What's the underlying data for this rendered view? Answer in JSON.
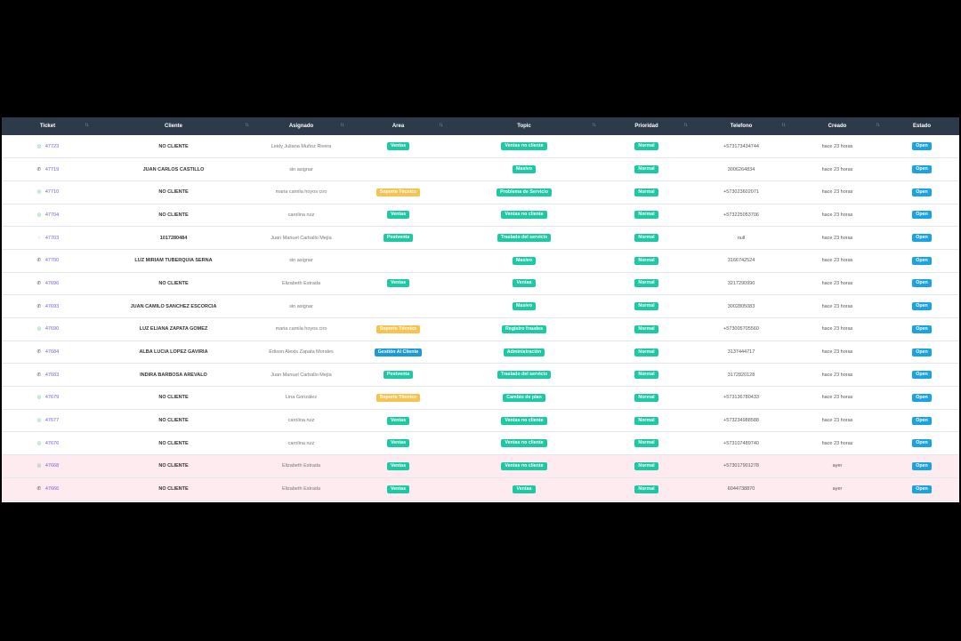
{
  "colors": {
    "header_bg": "#2d3a4a",
    "badge_green": "#1dc9a2",
    "badge_yellow": "#f7c34f",
    "badge_blue": "#1a9ad6",
    "badge_open": "#1aa3e3",
    "pending_row_bg": "#fdebef",
    "ticket_link": "#7a5cd6"
  },
  "headers": [
    "Ticket",
    "Cliente",
    "Asignado",
    "Area",
    "Topic",
    "Prioridad",
    "Telefono",
    "Creado",
    "Estado"
  ],
  "rows": [
    {
      "channel": "whatsapp-icon",
      "ticket": "47723",
      "cliente": "NO CLIENTE",
      "asignado": "Leidy Juliana Muñoz Rivera",
      "area": "Ventas",
      "area_color": "green",
      "topic": "Ventas no cliente",
      "prioridad": "Normal",
      "telefono": "+573173434744",
      "creado": "hace 23 horas",
      "estado": "Open",
      "pending": false
    },
    {
      "channel": "phone-icon",
      "ticket": "47719",
      "cliente": "JUAN CARLOS CASTILLO",
      "asignado": "sin asignar",
      "area": "",
      "area_color": "",
      "topic": "Masivo",
      "prioridad": "Normal",
      "telefono": "3006264834",
      "creado": "hace 23 horas",
      "estado": "Open",
      "pending": false
    },
    {
      "channel": "whatsapp-icon",
      "ticket": "47710",
      "cliente": "NO CLIENTE",
      "asignado": "maria camila hoyos ciro",
      "area": "Soporte Técnico",
      "area_color": "yellow",
      "topic": "Problema de Servicio",
      "prioridad": "Normal",
      "telefono": "+573023602071",
      "creado": "hace 23 horas",
      "estado": "Open",
      "pending": false
    },
    {
      "channel": "whatsapp-icon",
      "ticket": "47704",
      "cliente": "NO CLIENTE",
      "asignado": "carolina ruiz",
      "area": "Ventas",
      "area_color": "green",
      "topic": "Ventas no cliente",
      "prioridad": "Normal",
      "telefono": "+573225053706",
      "creado": "hace 23 horas",
      "estado": "Open",
      "pending": false
    },
    {
      "channel": "none",
      "ticket": "47703",
      "cliente": "1017280484",
      "asignado": "Juan Manuel Carballo Mejía",
      "area": "Postventa",
      "area_color": "green",
      "topic": "Traslado del servicio",
      "prioridad": "Normal",
      "telefono": "null",
      "creado": "hace 23 horas",
      "estado": "Open",
      "pending": false
    },
    {
      "channel": "phone-icon",
      "ticket": "47700",
      "cliente": "LUZ MIRIAM TUBERQUIA SERNA",
      "asignado": "sin asignar",
      "area": "",
      "area_color": "",
      "topic": "Masivo",
      "prioridad": "Normal",
      "telefono": "3166742524",
      "creado": "hace 23 horas",
      "estado": "Open",
      "pending": false
    },
    {
      "channel": "phone-icon",
      "ticket": "47696",
      "cliente": "NO CLIENTE",
      "asignado": "Elizabeth Estrada",
      "area": "Ventas",
      "area_color": "green",
      "topic": "Ventas",
      "prioridad": "Normal",
      "telefono": "3217290990",
      "creado": "hace 23 horas",
      "estado": "Open",
      "pending": false
    },
    {
      "channel": "phone-icon",
      "ticket": "47693",
      "cliente": "JUAN CAMILO SANCHEZ ESCORCIA",
      "asignado": "sin asignar",
      "area": "",
      "area_color": "",
      "topic": "Masivo",
      "prioridad": "Normal",
      "telefono": "3002805083",
      "creado": "hace 23 horas",
      "estado": "Open",
      "pending": false
    },
    {
      "channel": "whatsapp-icon",
      "ticket": "47690",
      "cliente": "LUZ ELIANA ZAPATA GOMEZ",
      "asignado": "maria camila hoyos ciro",
      "area": "Soporte Técnico",
      "area_color": "yellow",
      "topic": "Registro fraudes",
      "prioridad": "Normal",
      "telefono": "+573005705560",
      "creado": "hace 23 horas",
      "estado": "Open",
      "pending": false
    },
    {
      "channel": "phone-icon",
      "ticket": "47684",
      "cliente": "ALBA LUCIA LOPEZ GAVIRIA",
      "asignado": "Edison Alexis Zapata Morales",
      "area": "Gestión Al Cliente",
      "area_color": "blue",
      "topic": "Administración",
      "prioridad": "Normal",
      "telefono": "3137444717",
      "creado": "hace 23 horas",
      "estado": "Open",
      "pending": false
    },
    {
      "channel": "phone-icon",
      "ticket": "47683",
      "cliente": "INDIRA BARBOSA AREVALO",
      "asignado": "Juan Manuel Carballo Mejía",
      "area": "Postventa",
      "area_color": "green",
      "topic": "Traslado del servicio",
      "prioridad": "Normal",
      "telefono": "3172820128",
      "creado": "hace 23 horas",
      "estado": "Open",
      "pending": false
    },
    {
      "channel": "whatsapp-icon",
      "ticket": "47679",
      "cliente": "NO CLIENTE",
      "asignado": "Lina González",
      "area": "Soporte Técnico",
      "area_color": "yellow",
      "topic": "Cambio de plan",
      "prioridad": "Normal",
      "telefono": "+573136780433",
      "creado": "hace 23 horas",
      "estado": "Open",
      "pending": false
    },
    {
      "channel": "whatsapp-icon",
      "ticket": "47677",
      "cliente": "NO CLIENTE",
      "asignado": "carolina ruiz",
      "area": "Ventas",
      "area_color": "green",
      "topic": "Ventas no cliente",
      "prioridad": "Normal",
      "telefono": "+573234988588",
      "creado": "hace 23 horas",
      "estado": "Open",
      "pending": false
    },
    {
      "channel": "whatsapp-icon",
      "ticket": "47676",
      "cliente": "NO CLIENTE",
      "asignado": "carolina ruiz",
      "area": "Ventas",
      "area_color": "green",
      "topic": "Ventas no cliente",
      "prioridad": "Normal",
      "telefono": "+573107489740",
      "creado": "hace 23 horas",
      "estado": "Open",
      "pending": false
    },
    {
      "channel": "whatsapp-icon",
      "ticket": "47668",
      "cliente": "NO CLIENTE",
      "asignado": "Elizabeth Estrada",
      "area": "Ventas",
      "area_color": "green",
      "topic": "Ventas no cliente",
      "prioridad": "Normal",
      "telefono": "+573017901278",
      "creado": "ayer",
      "estado": "Open",
      "pending": true
    },
    {
      "channel": "phone-icon",
      "ticket": "47666",
      "cliente": "NO CLIENTE",
      "asignado": "Elizabeth Estrada",
      "area": "Ventas",
      "area_color": "green",
      "topic": "Ventas",
      "prioridad": "Normal",
      "telefono": "6044738870",
      "creado": "ayer",
      "estado": "Open",
      "pending": true
    }
  ]
}
